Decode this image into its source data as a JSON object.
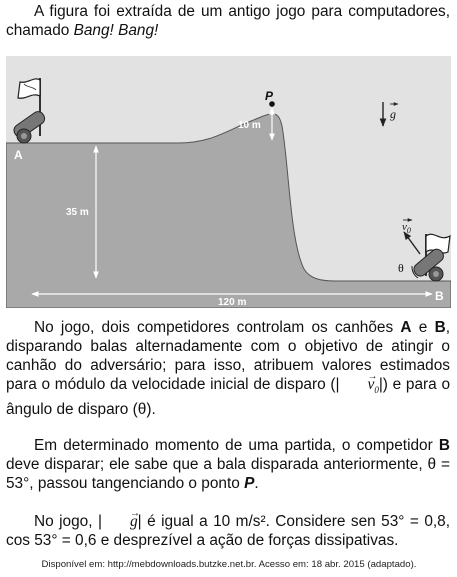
{
  "intro": {
    "before": "A figura foi extraída de um antigo jogo para computadores, chamado ",
    "game_name": "Bang! Bang!"
  },
  "figure": {
    "label_A": "A",
    "label_B": "B",
    "label_P": "P",
    "dim_10m": "10 m",
    "dim_35m": "35 m",
    "dim_120m": "120 m",
    "g_label": "g",
    "v0_label": "v",
    "v0_sub": "0",
    "theta_label": "θ"
  },
  "para1": {
    "t1": "No jogo, dois competidores controlam os canhões ",
    "A": "A",
    "t2": " e ",
    "B": "B",
    "t3": ", disparando balas alternadamente com o objetivo de atingir o canhão do adversário; para isso, atribuem valores estimados para o módulo da velocidade inicial de disparo (|",
    "v0": "v",
    "v0_sub": "0",
    "t4": "|) e para o ângulo de disparo (θ)."
  },
  "para2": {
    "t1": "Em determinado momento de uma partida, o competidor ",
    "B": "B",
    "t2": " deve disparar; ele sabe que a bala disparada anteriormente, θ = 53°, passou tangenciando o ponto ",
    "P": "P",
    "t3": "."
  },
  "para3": {
    "t1": "No jogo, |",
    "g": "g",
    "t2": "| é igual a 10 m/s². Considere sen 53° = 0,8, cos 53° = 0,6 e desprezível a ação de forças dissipativas."
  },
  "source": "Disponível em: http://mebdownloads.butzke.net.br. Acesso em: 18 abr. 2015 (adaptado)."
}
